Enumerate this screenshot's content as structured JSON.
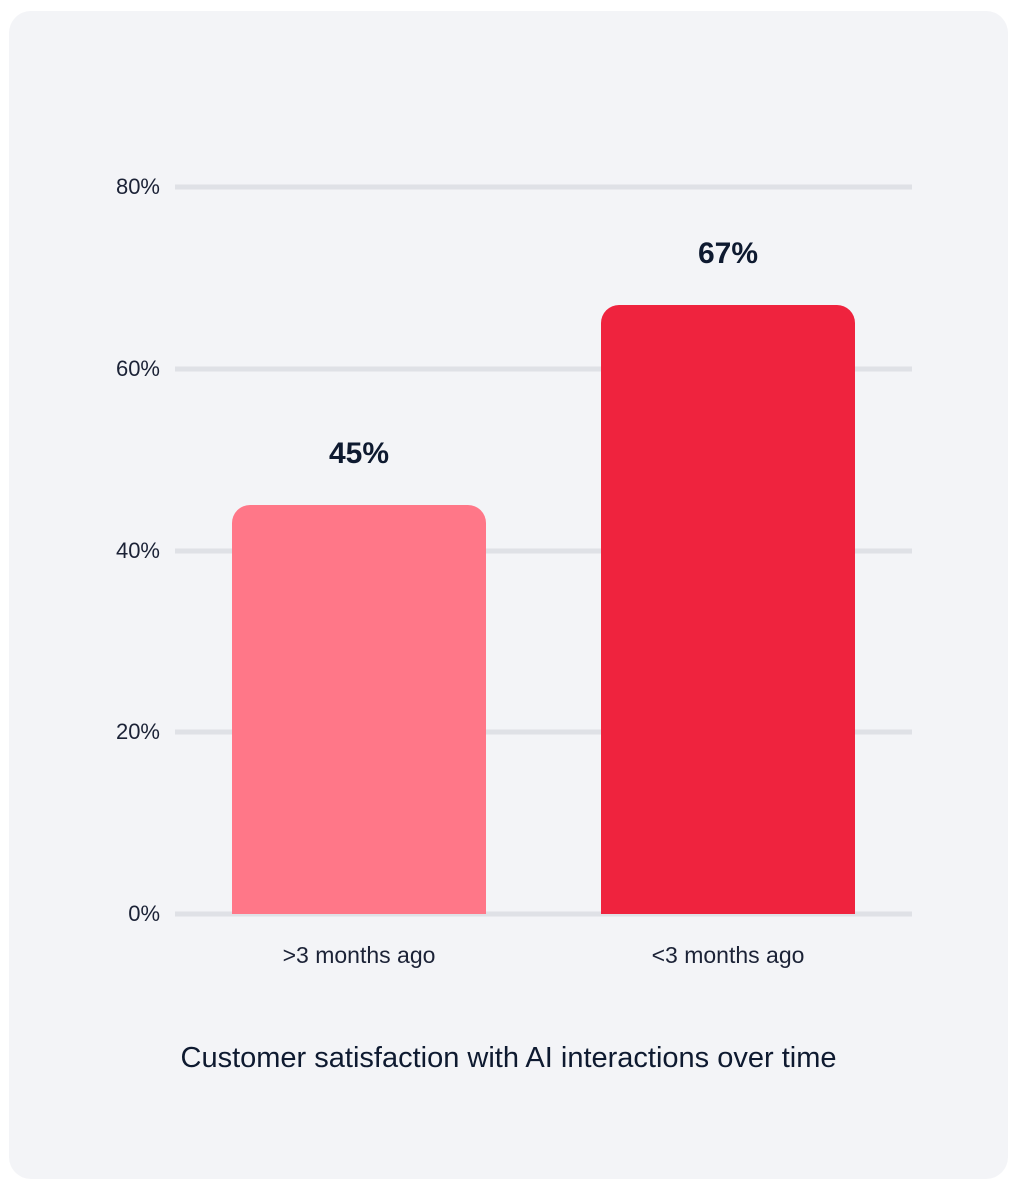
{
  "chart_data": {
    "type": "bar",
    "title": "Customer satisfaction with AI interactions over time",
    "xlabel": "",
    "ylabel": "",
    "categories": [
      ">3 months ago",
      "<3 months ago"
    ],
    "values": [
      45,
      67
    ],
    "value_labels": [
      "45%",
      "67%"
    ],
    "bar_colors": [
      "#ff7788",
      "#ef233e"
    ],
    "ylim": [
      0,
      80
    ],
    "yticks": [
      0,
      20,
      40,
      60,
      80
    ],
    "ytick_labels": [
      "0%",
      "20%",
      "40%",
      "60%",
      "80%"
    ],
    "grid": true,
    "legend": null
  },
  "ui": {
    "card_background": "#f3f4f7",
    "gridline_color": "#dfe1e6",
    "text_color": "#0e1a30"
  }
}
